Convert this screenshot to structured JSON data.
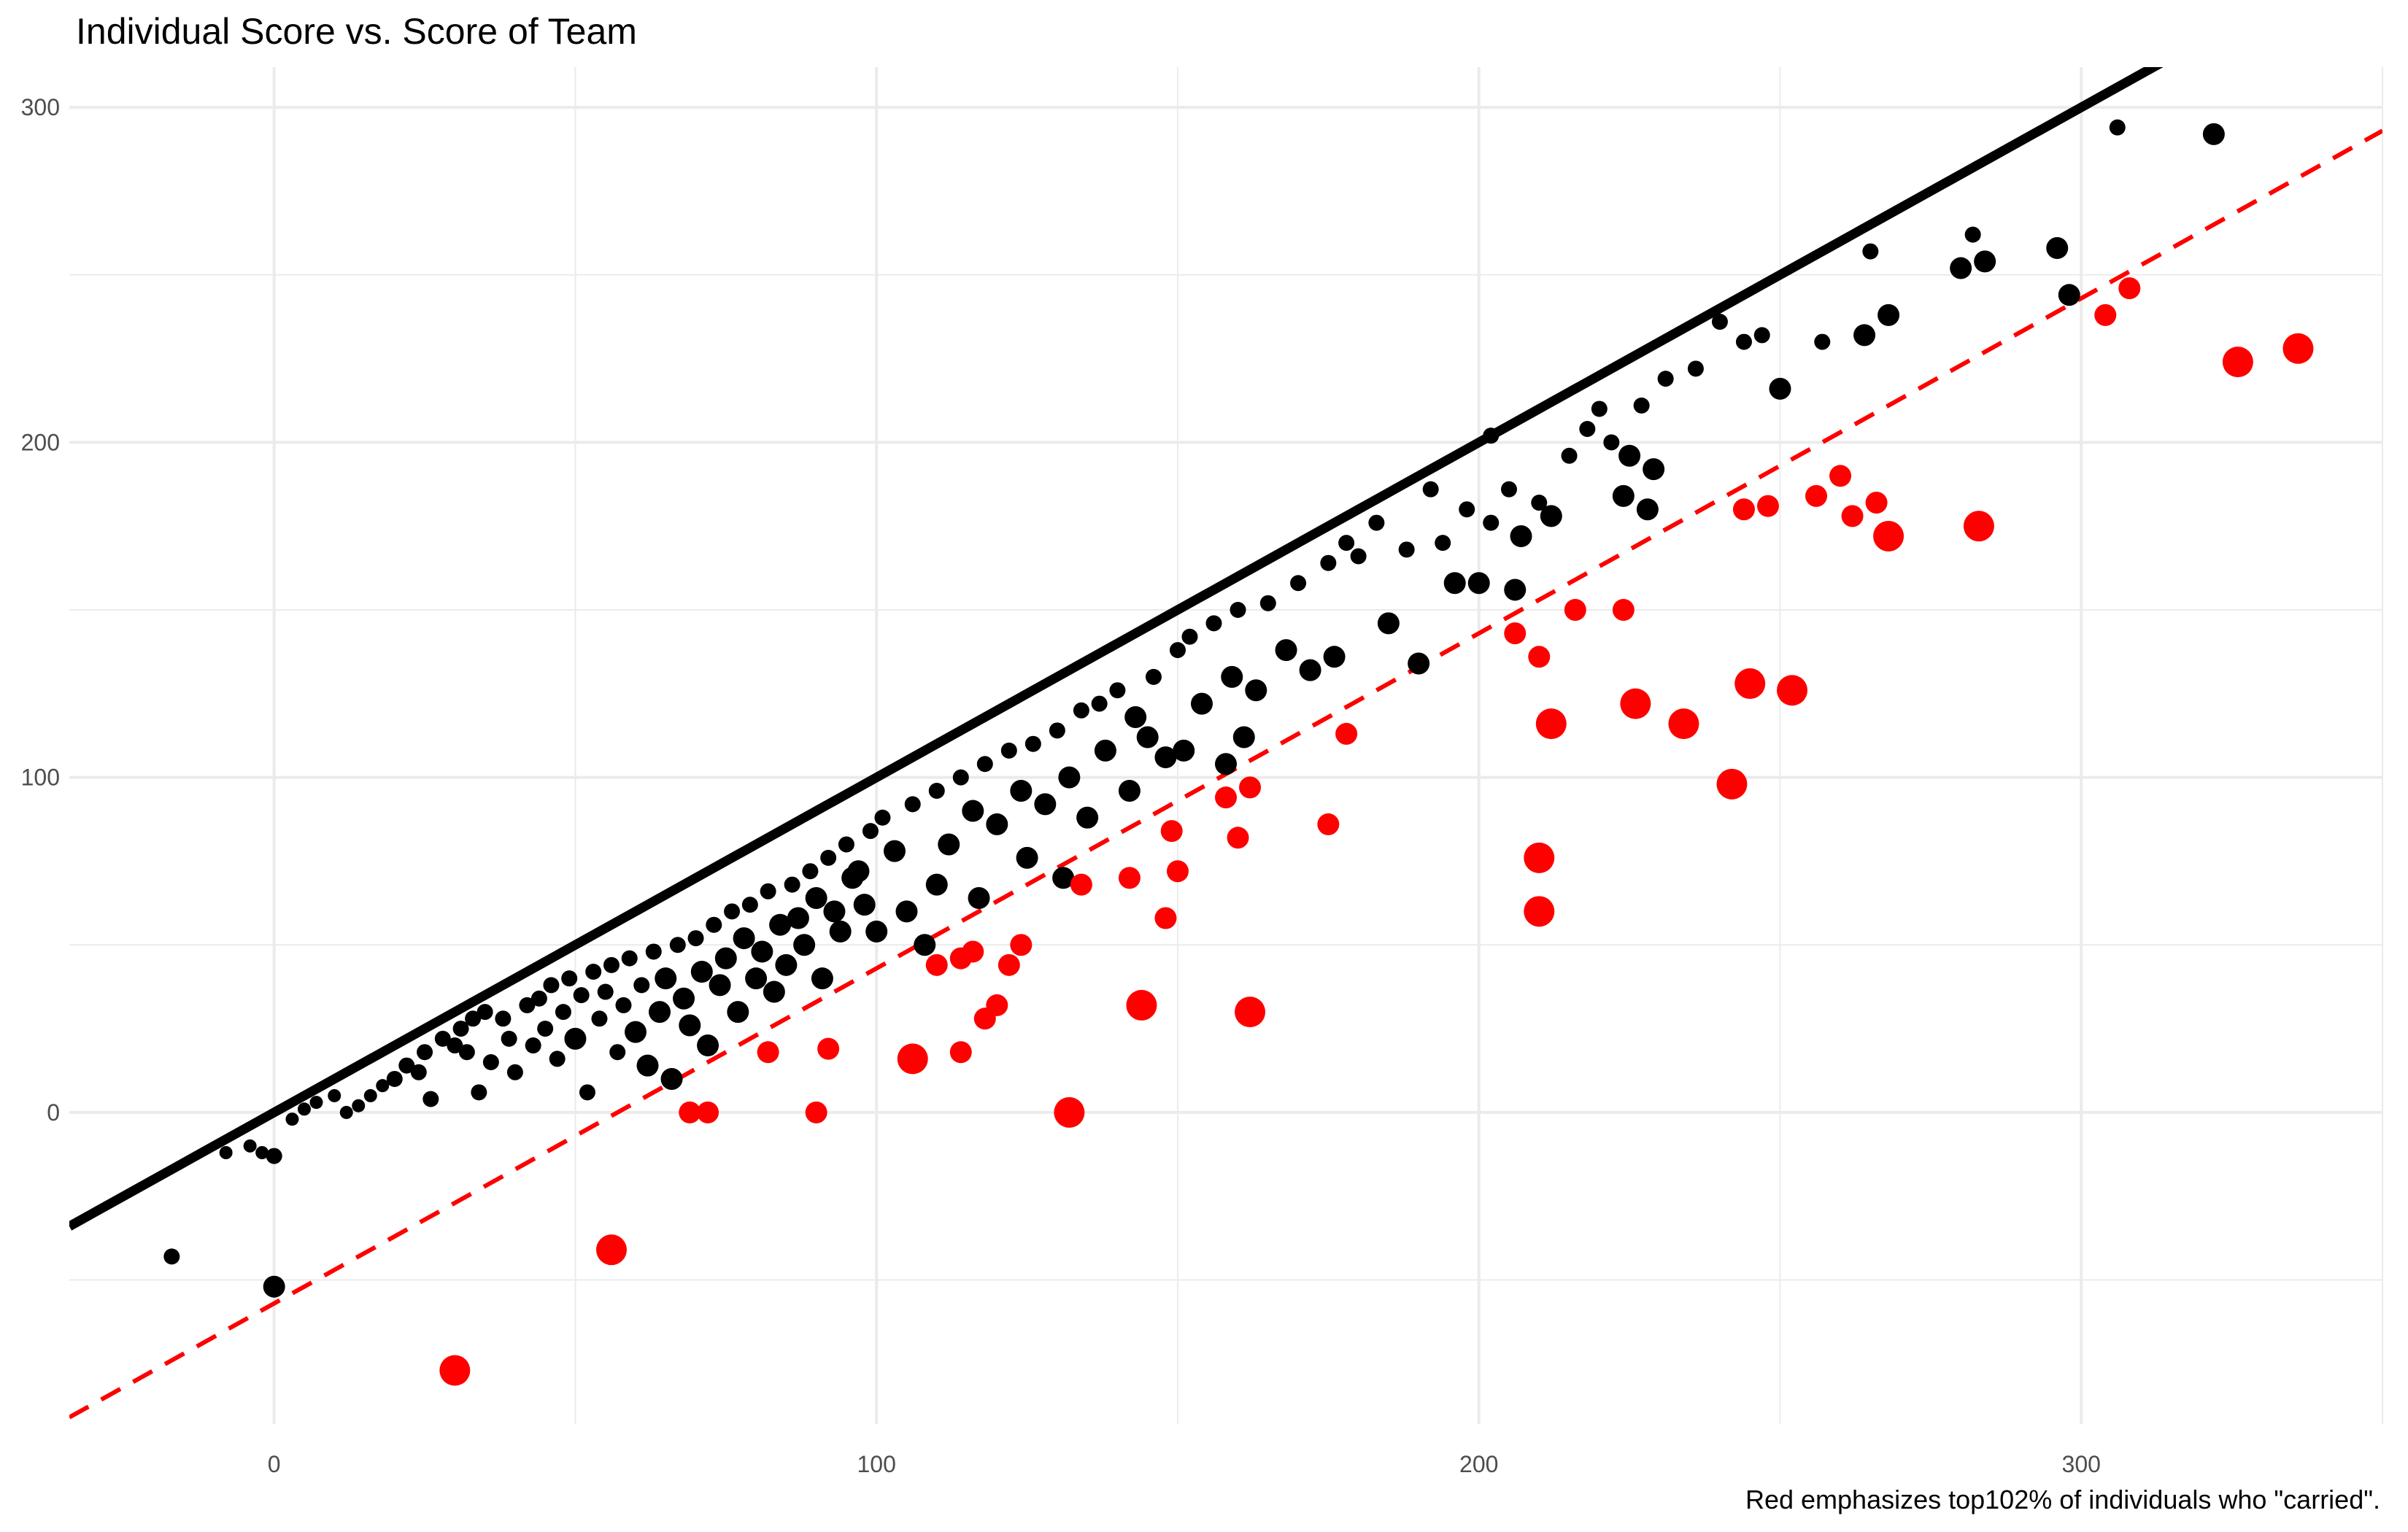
{
  "chart_data": {
    "type": "scatter",
    "title": "Individual Score vs. Score of Team",
    "caption": "Red emphasizes top102% of individuals who \"carried\".",
    "xlabel": "",
    "ylabel": "",
    "xlim": [
      -34,
      350
    ],
    "ylim": [
      -93,
      312
    ],
    "x_ticks": [
      0,
      100,
      200,
      300
    ],
    "y_ticks": [
      0,
      100,
      200,
      300
    ],
    "grid": true,
    "colors": {
      "black": "#000000",
      "red": "#ff0000",
      "grid": "#ebebeb",
      "tick": "#4d4d4d"
    },
    "reference_lines": [
      {
        "name": "identity",
        "slope": 1,
        "intercept": 0,
        "color": "#000000",
        "style": "solid"
      },
      {
        "name": "threshold",
        "slope": 1,
        "intercept": -57,
        "color": "#ff0000",
        "style": "dashed"
      }
    ],
    "series": [
      {
        "color": "#000000",
        "points": [
          [
            -17,
            -43,
            2
          ],
          [
            0,
            -52,
            3
          ],
          [
            -8,
            -12,
            1
          ],
          [
            -4,
            -10,
            1
          ],
          [
            -2,
            -12,
            1
          ],
          [
            0,
            -13,
            2
          ],
          [
            3,
            -2,
            1
          ],
          [
            5,
            1,
            1
          ],
          [
            7,
            3,
            1
          ],
          [
            10,
            5,
            1
          ],
          [
            12,
            0,
            1
          ],
          [
            14,
            2,
            1
          ],
          [
            16,
            5,
            1
          ],
          [
            18,
            8,
            1
          ],
          [
            20,
            10,
            2
          ],
          [
            22,
            14,
            2
          ],
          [
            24,
            12,
            2
          ],
          [
            25,
            18,
            2
          ],
          [
            26,
            4,
            2
          ],
          [
            28,
            22,
            2
          ],
          [
            30,
            20,
            2
          ],
          [
            31,
            25,
            2
          ],
          [
            32,
            18,
            2
          ],
          [
            33,
            28,
            2
          ],
          [
            34,
            6,
            2
          ],
          [
            35,
            30,
            2
          ],
          [
            36,
            15,
            2
          ],
          [
            38,
            28,
            2
          ],
          [
            39,
            22,
            2
          ],
          [
            40,
            12,
            2
          ],
          [
            42,
            32,
            2
          ],
          [
            43,
            20,
            2
          ],
          [
            44,
            34,
            2
          ],
          [
            45,
            25,
            2
          ],
          [
            46,
            38,
            2
          ],
          [
            47,
            16,
            2
          ],
          [
            48,
            30,
            2
          ],
          [
            49,
            40,
            2
          ],
          [
            50,
            22,
            3
          ],
          [
            51,
            35,
            2
          ],
          [
            52,
            6,
            2
          ],
          [
            53,
            42,
            2
          ],
          [
            54,
            28,
            2
          ],
          [
            55,
            36,
            2
          ],
          [
            56,
            44,
            2
          ],
          [
            57,
            18,
            2
          ],
          [
            58,
            32,
            2
          ],
          [
            59,
            46,
            2
          ],
          [
            60,
            24,
            3
          ],
          [
            61,
            38,
            2
          ],
          [
            62,
            14,
            3
          ],
          [
            63,
            48,
            2
          ],
          [
            64,
            30,
            3
          ],
          [
            65,
            40,
            3
          ],
          [
            66,
            10,
            3
          ],
          [
            67,
            50,
            2
          ],
          [
            68,
            34,
            3
          ],
          [
            69,
            26,
            3
          ],
          [
            70,
            52,
            2
          ],
          [
            71,
            42,
            3
          ],
          [
            72,
            20,
            3
          ],
          [
            73,
            56,
            2
          ],
          [
            74,
            38,
            3
          ],
          [
            75,
            46,
            3
          ],
          [
            76,
            60,
            2
          ],
          [
            77,
            30,
            3
          ],
          [
            78,
            52,
            3
          ],
          [
            79,
            62,
            2
          ],
          [
            80,
            40,
            3
          ],
          [
            81,
            48,
            3
          ],
          [
            82,
            66,
            2
          ],
          [
            83,
            36,
            3
          ],
          [
            84,
            56,
            3
          ],
          [
            85,
            44,
            3
          ],
          [
            86,
            68,
            2
          ],
          [
            87,
            58,
            3
          ],
          [
            88,
            50,
            3
          ],
          [
            89,
            72,
            2
          ],
          [
            90,
            64,
            3
          ],
          [
            91,
            40,
            3
          ],
          [
            92,
            76,
            2
          ],
          [
            93,
            60,
            3
          ],
          [
            94,
            54,
            3
          ],
          [
            95,
            80,
            2
          ],
          [
            96,
            70,
            3
          ],
          [
            97,
            72,
            3
          ],
          [
            98,
            62,
            3
          ],
          [
            99,
            84,
            2
          ],
          [
            100,
            54,
            3
          ],
          [
            101,
            88,
            2
          ],
          [
            103,
            78,
            3
          ],
          [
            105,
            60,
            3
          ],
          [
            106,
            92,
            2
          ],
          [
            108,
            50,
            3
          ],
          [
            110,
            68,
            3
          ],
          [
            110,
            96,
            2
          ],
          [
            112,
            80,
            3
          ],
          [
            114,
            100,
            2
          ],
          [
            116,
            90,
            3
          ],
          [
            117,
            64,
            3
          ],
          [
            118,
            104,
            2
          ],
          [
            120,
            86,
            3
          ],
          [
            122,
            108,
            2
          ],
          [
            124,
            96,
            3
          ],
          [
            125,
            76,
            3
          ],
          [
            126,
            110,
            2
          ],
          [
            128,
            92,
            3
          ],
          [
            130,
            114,
            2
          ],
          [
            131,
            70,
            3
          ],
          [
            132,
            100,
            3
          ],
          [
            134,
            120,
            2
          ],
          [
            135,
            88,
            3
          ],
          [
            137,
            122,
            2
          ],
          [
            138,
            108,
            3
          ],
          [
            140,
            126,
            2
          ],
          [
            142,
            96,
            3
          ],
          [
            143,
            118,
            3
          ],
          [
            145,
            112,
            3
          ],
          [
            146,
            130,
            2
          ],
          [
            148,
            106,
            3
          ],
          [
            150,
            138,
            2
          ],
          [
            151,
            108,
            3
          ],
          [
            152,
            142,
            2
          ],
          [
            154,
            122,
            3
          ],
          [
            156,
            146,
            2
          ],
          [
            158,
            104,
            3
          ],
          [
            159,
            130,
            3
          ],
          [
            160,
            150,
            2
          ],
          [
            161,
            112,
            3
          ],
          [
            163,
            126,
            3
          ],
          [
            165,
            152,
            2
          ],
          [
            168,
            138,
            3
          ],
          [
            170,
            158,
            2
          ],
          [
            172,
            132,
            3
          ],
          [
            175,
            164,
            2
          ],
          [
            176,
            136,
            3
          ],
          [
            178,
            170,
            2
          ],
          [
            180,
            166,
            2
          ],
          [
            183,
            176,
            2
          ],
          [
            185,
            146,
            3
          ],
          [
            188,
            168,
            2
          ],
          [
            190,
            134,
            3
          ],
          [
            192,
            186,
            2
          ],
          [
            194,
            170,
            2
          ],
          [
            196,
            158,
            3
          ],
          [
            198,
            180,
            2
          ],
          [
            200,
            158,
            3
          ],
          [
            202,
            176,
            2
          ],
          [
            205,
            186,
            2
          ],
          [
            206,
            156,
            3
          ],
          [
            207,
            172,
            3
          ],
          [
            210,
            182,
            2
          ],
          [
            212,
            178,
            3
          ],
          [
            215,
            196,
            2
          ],
          [
            218,
            204,
            2
          ],
          [
            220,
            210,
            2
          ],
          [
            222,
            200,
            2
          ],
          [
            224,
            184,
            3
          ],
          [
            225,
            196,
            3
          ],
          [
            227,
            211,
            2
          ],
          [
            228,
            180,
            3
          ],
          [
            229,
            192,
            3
          ],
          [
            231,
            219,
            2
          ],
          [
            236,
            222,
            2
          ],
          [
            240,
            236,
            2
          ],
          [
            244,
            230,
            2
          ],
          [
            247,
            232,
            2
          ],
          [
            250,
            216,
            3
          ],
          [
            264,
            232,
            3
          ],
          [
            268,
            238,
            3
          ],
          [
            280,
            252,
            3
          ],
          [
            282,
            262,
            2
          ],
          [
            284,
            254,
            3
          ],
          [
            296,
            258,
            3
          ],
          [
            298,
            244,
            3
          ],
          [
            306,
            294,
            2
          ],
          [
            322,
            292,
            3
          ],
          [
            265,
            257,
            2
          ],
          [
            257,
            230,
            2
          ],
          [
            202,
            202,
            2
          ]
        ]
      },
      {
        "color": "#ff0000",
        "points": [
          [
            30,
            -77,
            4
          ],
          [
            56,
            -41,
            4
          ],
          [
            69,
            0,
            3
          ],
          [
            72,
            0,
            3
          ],
          [
            82,
            18,
            3
          ],
          [
            90,
            0,
            3
          ],
          [
            92,
            19,
            3
          ],
          [
            106,
            16,
            4
          ],
          [
            110,
            44,
            3
          ],
          [
            114,
            46,
            3
          ],
          [
            116,
            48,
            3
          ],
          [
            114,
            18,
            3
          ],
          [
            118,
            28,
            3
          ],
          [
            120,
            32,
            3
          ],
          [
            122,
            44,
            3
          ],
          [
            124,
            50,
            3
          ],
          [
            132,
            0,
            4
          ],
          [
            134,
            68,
            3
          ],
          [
            142,
            70,
            3
          ],
          [
            144,
            32,
            4
          ],
          [
            148,
            58,
            3
          ],
          [
            149,
            84,
            3
          ],
          [
            150,
            72,
            3
          ],
          [
            158,
            94,
            3
          ],
          [
            160,
            82,
            3
          ],
          [
            162,
            97,
            3
          ],
          [
            162,
            30,
            4
          ],
          [
            175,
            86,
            3
          ],
          [
            178,
            113,
            3
          ],
          [
            206,
            143,
            3
          ],
          [
            210,
            136,
            3
          ],
          [
            210,
            76,
            4
          ],
          [
            210,
            60,
            4
          ],
          [
            212,
            116,
            4
          ],
          [
            216,
            150,
            3
          ],
          [
            224,
            150,
            3
          ],
          [
            226,
            122,
            4
          ],
          [
            234,
            116,
            4
          ],
          [
            242,
            98,
            4
          ],
          [
            244,
            180,
            3
          ],
          [
            245,
            128,
            4
          ],
          [
            248,
            181,
            3
          ],
          [
            252,
            126,
            4
          ],
          [
            256,
            184,
            3
          ],
          [
            260,
            190,
            3
          ],
          [
            262,
            178,
            3
          ],
          [
            266,
            182,
            3
          ],
          [
            268,
            172,
            4
          ],
          [
            283,
            175,
            4
          ],
          [
            304,
            238,
            3
          ],
          [
            308,
            246,
            3
          ],
          [
            326,
            224,
            4
          ],
          [
            336,
            228,
            4
          ]
        ]
      }
    ]
  }
}
